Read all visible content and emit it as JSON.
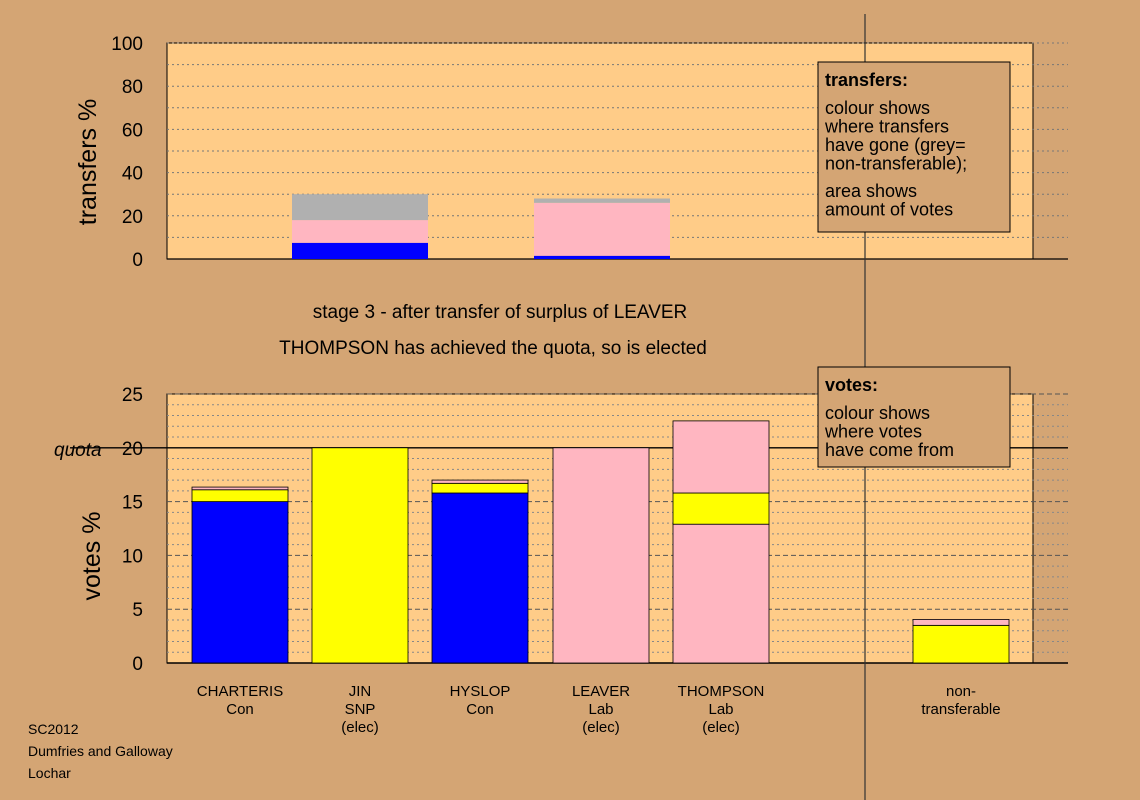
{
  "chart_data": [
    {
      "type": "bar",
      "stacked": true,
      "ylabel": "transfers %",
      "ylim": [
        0,
        100
      ],
      "yticks": [
        0,
        20,
        40,
        60,
        80,
        100
      ],
      "categories": [
        "CHARTERIS",
        "HYSLOP"
      ],
      "bars": [
        {
          "category": "CHARTERIS",
          "segments": [
            {
              "value": 7.5,
              "color": "#0000ff"
            },
            {
              "value": 10.5,
              "color": "#ffb6c1"
            },
            {
              "value": 12.0,
              "color": "#b0b0b0"
            }
          ]
        },
        {
          "category": "HYSLOP",
          "segments": [
            {
              "value": 1.5,
              "color": "#0000ff"
            },
            {
              "value": 24.5,
              "color": "#ffb6c1"
            },
            {
              "value": 2.0,
              "color": "#b0b0b0"
            }
          ]
        }
      ],
      "legend": {
        "title": "transfers:",
        "lines": [
          "colour shows",
          "where transfers",
          "have gone (grey=",
          "non-transferable);"
        ],
        "lines2": [
          "area shows",
          "amount of votes"
        ]
      }
    },
    {
      "type": "bar",
      "stacked": true,
      "ylabel": "votes %",
      "ylim": [
        0,
        25
      ],
      "yticks": [
        0,
        5,
        10,
        15,
        20,
        25
      ],
      "quota": {
        "value": 20,
        "label": "quota"
      },
      "categories": [
        "CHARTERIS",
        "JIN",
        "HYSLOP",
        "LEAVER",
        "THOMPSON",
        "non-transferable"
      ],
      "bars": [
        {
          "category": "CHARTERIS",
          "labels": [
            "CHARTERIS",
            "Con"
          ],
          "segments": [
            {
              "value": 15.0,
              "color": "#0000ff"
            },
            {
              "value": 1.1,
              "color": "#ffff00"
            },
            {
              "value": 0.25,
              "color": "#ffb6c1"
            }
          ]
        },
        {
          "category": "JIN",
          "labels": [
            "JIN",
            "SNP",
            "(elec)"
          ],
          "segments": [
            {
              "value": 20.0,
              "color": "#ffff00"
            }
          ]
        },
        {
          "category": "HYSLOP",
          "labels": [
            "HYSLOP",
            "Con"
          ],
          "segments": [
            {
              "value": 15.8,
              "color": "#0000ff"
            },
            {
              "value": 0.9,
              "color": "#ffff00"
            },
            {
              "value": 0.3,
              "color": "#ffb6c1"
            }
          ]
        },
        {
          "category": "LEAVER",
          "labels": [
            "LEAVER",
            "Lab",
            "(elec)"
          ],
          "segments": [
            {
              "value": 20.0,
              "color": "#ffb6c1"
            }
          ]
        },
        {
          "category": "THOMPSON",
          "labels": [
            "THOMPSON",
            "Lab",
            "(elec)"
          ],
          "segments": [
            {
              "value": 12.9,
              "color": "#ffb6c1"
            },
            {
              "value": 2.9,
              "color": "#ffff00"
            },
            {
              "value": 6.7,
              "color": "#ffb6c1"
            }
          ]
        },
        {
          "category": "non-transferable",
          "labels": [
            "non-",
            "transferable"
          ],
          "segments": [
            {
              "value": 3.5,
              "color": "#ffff00"
            },
            {
              "value": 0.55,
              "color": "#ffb6c1"
            }
          ]
        }
      ],
      "legend": {
        "title": "votes:",
        "lines": [
          "colour shows",
          "where votes",
          "have come from"
        ]
      }
    }
  ],
  "captions": {
    "stage": "stage 3 - after transfer of surplus of LEAVER",
    "status": "THOMPSON has achieved the quota, so is elected"
  },
  "footer": [
    "SC2012",
    "Dumfries and Galloway",
    "Lochar"
  ],
  "colors": {
    "background": "#d4a574",
    "plot": "#ffcc88",
    "legend_box": "#d4a574",
    "con": "#0000ff",
    "snp": "#ffff00",
    "lab": "#ffb6c1",
    "nontransferable": "#b0b0b0"
  }
}
